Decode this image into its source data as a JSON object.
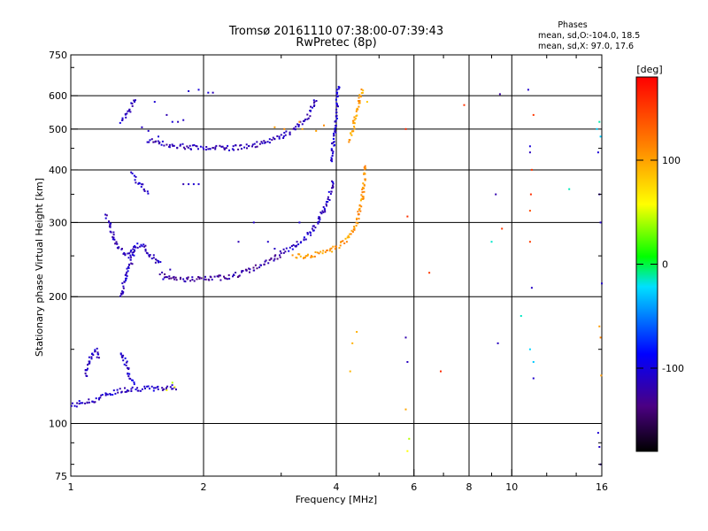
{
  "chart_data": {
    "type": "scatter",
    "title": "Tromsø 20161110 07:38:00-07:39:43",
    "subtitle": "RwPretec (8p)",
    "xlabel": "Frequency [MHz]",
    "ylabel": "Stationary phase Virtual Height [km]",
    "x_scale": "log",
    "y_scale": "log",
    "xlim": [
      1,
      16
    ],
    "ylim": [
      75,
      750
    ],
    "x_ticks": [
      1,
      2,
      4,
      6,
      8,
      10,
      16
    ],
    "x_tick_labels": [
      "1",
      "2",
      "4",
      "6",
      "8",
      "10",
      "16"
    ],
    "x_minor_ticks": [
      3,
      5,
      7,
      9,
      12,
      14
    ],
    "y_ticks": [
      75,
      100,
      200,
      300,
      400,
      500,
      600,
      750
    ],
    "y_tick_labels": [
      "75",
      "100",
      "200",
      "300",
      "400",
      "500",
      "600",
      "750"
    ],
    "y_minor_ticks": [
      80,
      90,
      150,
      250,
      350,
      450,
      700
    ],
    "grid": true,
    "stats": {
      "header": "Phases",
      "line_o": "mean, sd,O:-104.0, 18.5",
      "line_x": "mean, sd,X:  97.0, 17.6"
    },
    "colorbar": {
      "label": "[deg]",
      "range": [
        -180,
        180
      ],
      "ticks": [
        100,
        0,
        -100
      ],
      "tick_labels": [
        "100",
        "0",
        "-100"
      ]
    },
    "traces": [
      {
        "x": [
          1.0,
          1.06,
          1.12,
          1.2,
          1.3,
          1.4,
          1.5,
          1.6,
          1.7,
          1.75
        ],
        "y": [
          110,
          112,
          113,
          117,
          120,
          121,
          121,
          121,
          122,
          122
        ],
        "phase": -110
      },
      {
        "x": [
          1.08,
          1.1,
          1.12,
          1.14,
          1.16
        ],
        "y": [
          130,
          140,
          146,
          150,
          142
        ],
        "phase": -110
      },
      {
        "x": [
          1.3,
          1.33,
          1.36,
          1.4
        ],
        "y": [
          148,
          140,
          130,
          124
        ],
        "phase": -105
      },
      {
        "x": [
          1.3,
          1.32,
          1.35,
          1.38,
          1.4,
          1.45,
          1.5,
          1.55,
          1.6
        ],
        "y": [
          200,
          215,
          230,
          250,
          265,
          265,
          255,
          245,
          238
        ],
        "phase": -110
      },
      {
        "x": [
          1.2,
          1.22,
          1.25,
          1.28,
          1.32,
          1.35,
          1.4
        ],
        "y": [
          310,
          300,
          280,
          260,
          255,
          250,
          260
        ],
        "phase": -115
      },
      {
        "x": [
          1.6,
          1.7,
          1.8,
          1.9,
          2.0,
          2.2,
          2.4,
          2.6,
          2.8,
          3.0
        ],
        "y": [
          226,
          222,
          220,
          220,
          220,
          222,
          226,
          233,
          242,
          252
        ],
        "phase": -125
      },
      {
        "x": [
          3.0,
          3.2,
          3.4,
          3.6,
          3.8,
          3.95
        ],
        "y": [
          254,
          262,
          275,
          295,
          330,
          380
        ],
        "phase": -110
      },
      {
        "x": [
          3.9,
          3.95,
          4.0,
          4.02,
          4.05
        ],
        "y": [
          420,
          470,
          530,
          590,
          640
        ],
        "phase": -105
      },
      {
        "x": [
          3.2,
          3.4,
          3.6,
          3.8,
          4.0,
          4.2,
          4.4,
          4.5,
          4.6,
          4.65
        ],
        "y": [
          250,
          250,
          252,
          255,
          262,
          272,
          290,
          315,
          350,
          410
        ],
        "phase": 105
      },
      {
        "x": [
          4.3,
          4.4,
          4.5,
          4.6
        ],
        "y": [
          470,
          520,
          580,
          630
        ],
        "phase": 100
      },
      {
        "x": [
          1.5,
          1.6,
          1.8,
          2.0,
          2.2,
          2.4,
          2.6,
          2.8,
          3.0,
          3.2,
          3.4,
          3.5,
          3.6
        ],
        "y": [
          470,
          462,
          455,
          450,
          450,
          452,
          458,
          466,
          478,
          498,
          525,
          550,
          590
        ],
        "phase": -115
      },
      {
        "x": [
          1.38,
          1.42,
          1.46,
          1.5
        ],
        "y": [
          390,
          375,
          360,
          350
        ],
        "phase": -105
      },
      {
        "x": [
          1.3,
          1.35,
          1.4
        ],
        "y": [
          520,
          545,
          590
        ],
        "phase": -110
      }
    ],
    "scatter": [
      {
        "x": [
          1.75,
          1.8,
          1.85,
          1.95,
          2.05,
          2.1,
          1.55,
          1.65,
          1.7,
          1.45,
          1.5,
          1.58,
          2.4,
          2.6,
          2.8,
          2.9,
          3.3,
          3.5,
          1.62,
          1.68
        ],
        "y": [
          520,
          525,
          615,
          620,
          610,
          610,
          580,
          540,
          520,
          505,
          495,
          480,
          270,
          300,
          270,
          260,
          300,
          280,
          220,
          232
        ],
        "phase": -110
      },
      {
        "x": [
          1.8,
          1.85,
          1.9,
          1.95
        ],
        "y": [
          370,
          370,
          370,
          370
        ],
        "phase": -110
      },
      {
        "x": [
          2.9,
          3.05,
          3.3,
          3.35,
          3.6,
          3.75
        ],
        "y": [
          505,
          500,
          520,
          500,
          495,
          510
        ],
        "phase": 110
      },
      {
        "x": [
          4.3,
          4.35,
          4.45,
          4.7,
          5.75
        ],
        "y": [
          133,
          155,
          165,
          580,
          108
        ],
        "phase": 90
      },
      {
        "x": [
          5.75,
          5.8,
          6.5,
          6.9,
          7.8
        ],
        "y": [
          500,
          310,
          228,
          133,
          570
        ],
        "phase": 160
      },
      {
        "x": [
          5.75,
          5.8,
          9.2,
          9.3,
          9.4
        ],
        "y": [
          160,
          140,
          350,
          155,
          605
        ],
        "phase": -120
      },
      {
        "x": [
          9.5,
          11.0,
          11.0,
          11.05,
          11.1,
          11.2
        ],
        "y": [
          290,
          270,
          320,
          350,
          400,
          540
        ],
        "phase": 150
      },
      {
        "x": [
          10.9,
          11.0,
          11.0,
          11.1,
          11.2
        ],
        "y": [
          620,
          455,
          440,
          210,
          128
        ],
        "phase": -110
      },
      {
        "x": [
          9.0,
          10.5,
          11.0,
          11.2,
          13.5,
          15.6,
          15.8,
          15.9
        ],
        "y": [
          270,
          180,
          150,
          140,
          360,
          500,
          520,
          480
        ],
        "phase": -20
      },
      {
        "x": [
          15.7,
          15.8,
          15.9,
          16.0,
          15.9,
          15.8,
          15.7
        ],
        "y": [
          95,
          88,
          80,
          215,
          300,
          350,
          440
        ],
        "phase": -110
      },
      {
        "x": [
          15.8,
          15.9,
          15.95
        ],
        "y": [
          170,
          160,
          130
        ],
        "phase": 110
      },
      {
        "x": [
          5.8,
          5.85,
          1.65,
          1.7,
          1.72
        ],
        "y": [
          86,
          92,
          120,
          125,
          122
        ],
        "phase": 50
      }
    ]
  }
}
